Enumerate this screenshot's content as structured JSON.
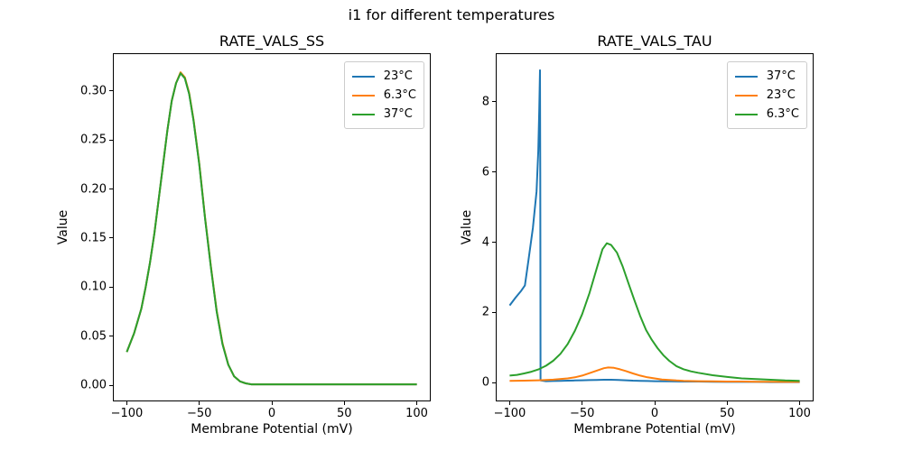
{
  "suptitle": "i1 for different temperatures",
  "palette": {
    "blue": "#1f77b4",
    "orange": "#ff7f0e",
    "green": "#2ca02c"
  },
  "chart_data": [
    {
      "type": "line",
      "title": "RATE_VALS_SS",
      "xlabel": "Membrane Potential (mV)",
      "ylabel": "Value",
      "xlim": [
        -109,
        109
      ],
      "ylim": [
        -0.0155,
        0.3375
      ],
      "grid": false,
      "legend_position": "upper right",
      "xticks": {
        "values": [
          -100,
          -50,
          0,
          50,
          100
        ],
        "labels": [
          "−100",
          "−50",
          "0",
          "50",
          "100"
        ]
      },
      "yticks": {
        "values": [
          0.0,
          0.05,
          0.1,
          0.15,
          0.2,
          0.25,
          0.3
        ],
        "labels": [
          "0.00",
          "0.05",
          "0.10",
          "0.15",
          "0.20",
          "0.25",
          "0.30"
        ]
      },
      "series": [
        {
          "name": "23°C",
          "color": "#1f77b4",
          "x": [
            -100,
            -95,
            -90,
            -87,
            -84,
            -81,
            -78,
            -75,
            -72,
            -69,
            -66,
            -63,
            -60,
            -57,
            -54,
            -50,
            -46,
            -42,
            -38,
            -34,
            -30,
            -26,
            -22,
            -18,
            -14,
            -10,
            0,
            20,
            40,
            60,
            80,
            100
          ],
          "y": [
            0.034,
            0.053,
            0.078,
            0.1,
            0.125,
            0.155,
            0.19,
            0.225,
            0.26,
            0.29,
            0.308,
            0.318,
            0.313,
            0.297,
            0.27,
            0.225,
            0.17,
            0.12,
            0.075,
            0.042,
            0.021,
            0.009,
            0.004,
            0.002,
            0.001,
            0.001,
            0.001,
            0.001,
            0.001,
            0.001,
            0.001,
            0.001
          ]
        },
        {
          "name": "6.3°C",
          "color": "#ff7f0e",
          "x": [
            -100,
            -95,
            -90,
            -87,
            -84,
            -81,
            -78,
            -75,
            -72,
            -69,
            -66,
            -63,
            -60,
            -57,
            -54,
            -50,
            -46,
            -42,
            -38,
            -34,
            -30,
            -26,
            -22,
            -18,
            -14,
            -10,
            0,
            20,
            40,
            60,
            80,
            100
          ],
          "y": [
            0.034,
            0.053,
            0.078,
            0.1,
            0.125,
            0.155,
            0.19,
            0.225,
            0.26,
            0.29,
            0.308,
            0.319,
            0.314,
            0.298,
            0.271,
            0.226,
            0.171,
            0.121,
            0.076,
            0.043,
            0.021,
            0.009,
            0.004,
            0.002,
            0.001,
            0.001,
            0.001,
            0.001,
            0.001,
            0.001,
            0.001,
            0.001
          ]
        },
        {
          "name": "37°C",
          "color": "#2ca02c",
          "x": [
            -100,
            -95,
            -90,
            -87,
            -84,
            -81,
            -78,
            -75,
            -72,
            -69,
            -66,
            -63,
            -60,
            -57,
            -54,
            -50,
            -46,
            -42,
            -38,
            -34,
            -30,
            -26,
            -22,
            -18,
            -14,
            -10,
            0,
            20,
            40,
            60,
            80,
            100
          ],
          "y": [
            0.034,
            0.053,
            0.078,
            0.1,
            0.125,
            0.155,
            0.19,
            0.225,
            0.26,
            0.29,
            0.308,
            0.318,
            0.313,
            0.297,
            0.27,
            0.225,
            0.17,
            0.12,
            0.075,
            0.042,
            0.021,
            0.009,
            0.004,
            0.002,
            0.001,
            0.001,
            0.001,
            0.001,
            0.001,
            0.001,
            0.001,
            0.001
          ]
        }
      ]
    },
    {
      "type": "line",
      "title": "RATE_VALS_TAU",
      "xlabel": "Membrane Potential (mV)",
      "ylabel": "Value",
      "xlim": [
        -109,
        109
      ],
      "ylim": [
        -0.51,
        9.36
      ],
      "grid": false,
      "legend_position": "upper right",
      "xticks": {
        "values": [
          -100,
          -50,
          0,
          50,
          100
        ],
        "labels": [
          "−100",
          "−50",
          "0",
          "50",
          "100"
        ]
      },
      "yticks": {
        "values": [
          0,
          2,
          4,
          6,
          8
        ],
        "labels": [
          "0",
          "2",
          "4",
          "6",
          "8"
        ]
      },
      "series": [
        {
          "name": "37°C",
          "color": "#1f77b4",
          "x": [
            -100,
            -96,
            -92,
            -89.5,
            -87,
            -84,
            -81.5,
            -80.3,
            -79.6,
            -79.1,
            -78.9,
            -78.8,
            -78.7,
            -75,
            -70,
            -65,
            -60,
            -55,
            -50,
            -45,
            -40,
            -35,
            -30,
            -25,
            -20,
            -15,
            -10,
            -5,
            0,
            10,
            20,
            30,
            40,
            50,
            60,
            70,
            80,
            90,
            100
          ],
          "y": [
            2.2,
            2.42,
            2.62,
            2.77,
            3.5,
            4.4,
            5.45,
            6.6,
            7.8,
            8.9,
            6.0,
            2.5,
            0.06,
            0.04,
            0.045,
            0.05,
            0.055,
            0.06,
            0.065,
            0.07,
            0.075,
            0.08,
            0.08,
            0.075,
            0.065,
            0.055,
            0.05,
            0.045,
            0.04,
            0.035,
            0.03,
            0.03,
            0.025,
            0.02,
            0.02,
            0.02,
            0.015,
            0.015,
            0.015
          ]
        },
        {
          "name": "23°C",
          "color": "#ff7f0e",
          "x": [
            -100,
            -90,
            -80,
            -70,
            -60,
            -55,
            -50,
            -45,
            -40,
            -35,
            -32,
            -28,
            -24,
            -20,
            -15,
            -10,
            -5,
            0,
            5,
            10,
            15,
            20,
            30,
            40,
            50,
            60,
            70,
            80,
            90,
            100
          ],
          "y": [
            0.05,
            0.055,
            0.065,
            0.085,
            0.12,
            0.15,
            0.2,
            0.27,
            0.34,
            0.41,
            0.43,
            0.42,
            0.38,
            0.33,
            0.26,
            0.2,
            0.15,
            0.12,
            0.09,
            0.075,
            0.06,
            0.05,
            0.04,
            0.035,
            0.03,
            0.03,
            0.025,
            0.025,
            0.02,
            0.02
          ]
        },
        {
          "name": "6.3°C",
          "color": "#2ca02c",
          "x": [
            -100,
            -95,
            -90,
            -85,
            -80,
            -75,
            -70,
            -65,
            -60,
            -55,
            -50,
            -45,
            -40,
            -36,
            -33,
            -30,
            -26,
            -22,
            -18,
            -14,
            -10,
            -6,
            -2,
            2,
            6,
            10,
            15,
            20,
            25,
            30,
            40,
            50,
            60,
            70,
            80,
            90,
            100
          ],
          "y": [
            0.2,
            0.22,
            0.26,
            0.31,
            0.38,
            0.48,
            0.62,
            0.82,
            1.1,
            1.48,
            1.95,
            2.55,
            3.25,
            3.8,
            3.97,
            3.92,
            3.7,
            3.3,
            2.82,
            2.35,
            1.9,
            1.5,
            1.22,
            0.98,
            0.78,
            0.62,
            0.47,
            0.38,
            0.32,
            0.28,
            0.21,
            0.16,
            0.12,
            0.1,
            0.08,
            0.06,
            0.05
          ]
        }
      ]
    }
  ]
}
